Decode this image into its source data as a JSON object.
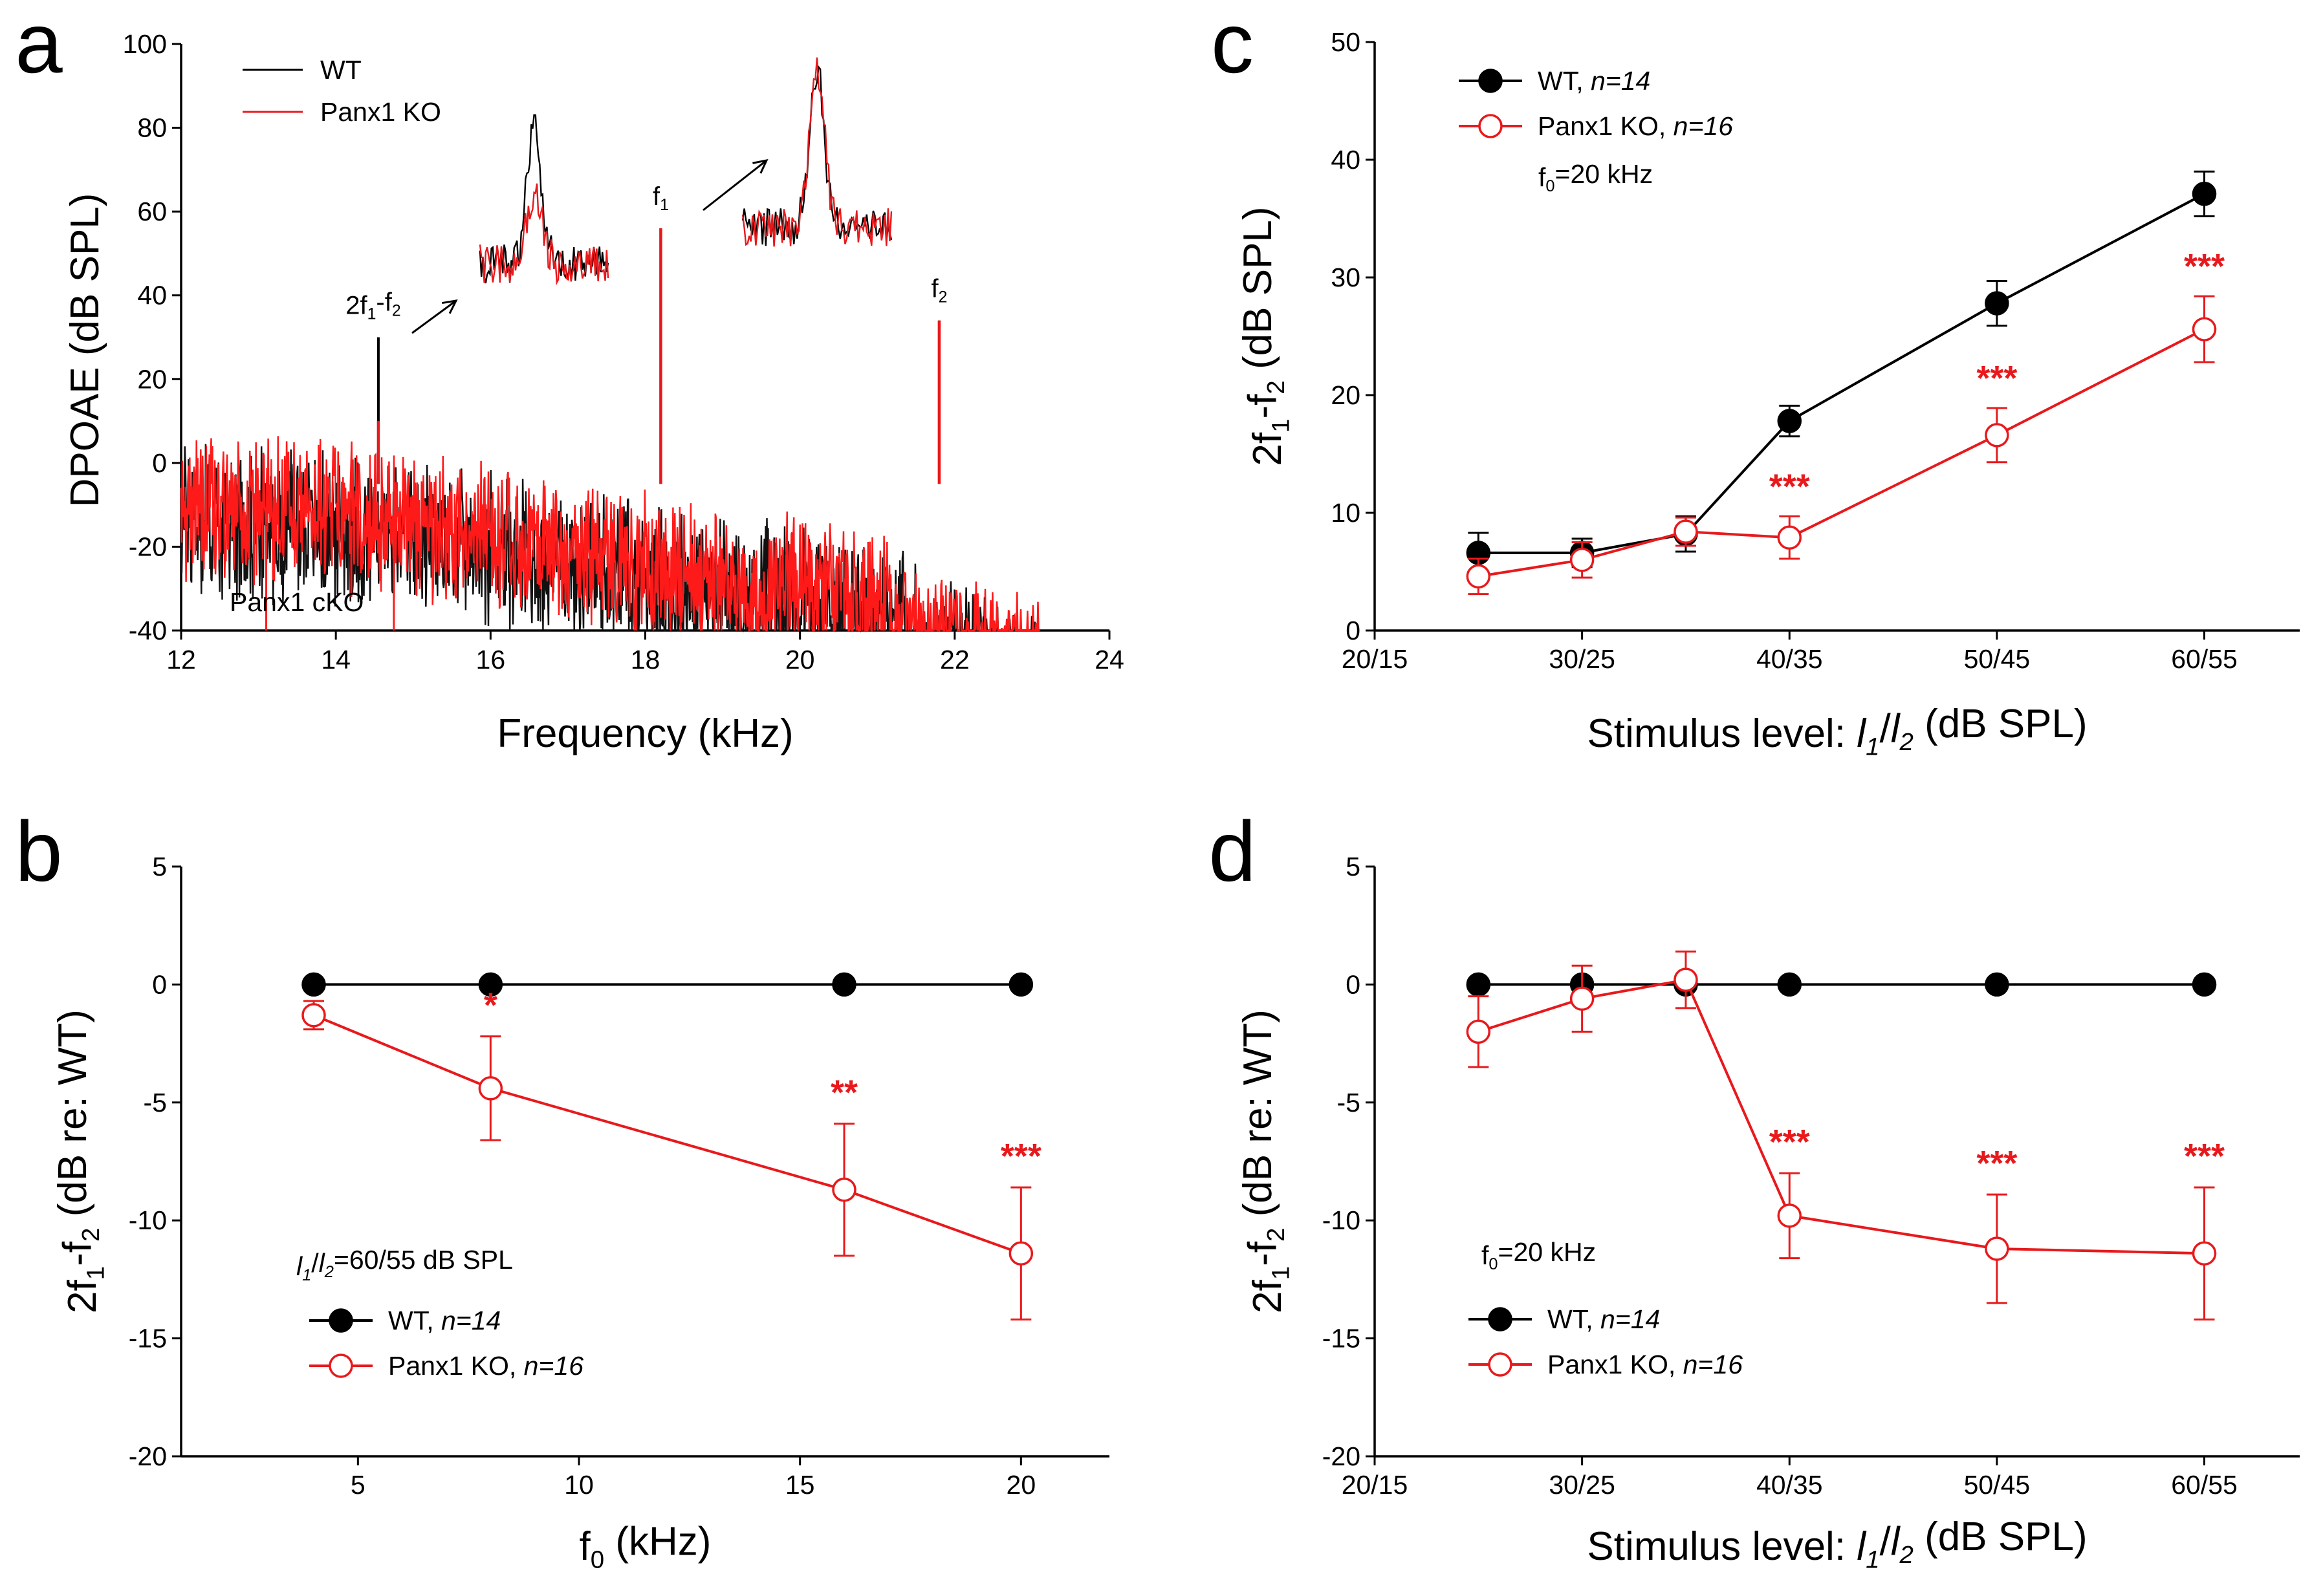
{
  "colors": {
    "wt": "#000000",
    "ko": "#e8191c",
    "noise_wt": "#111111",
    "noise_ko": "#ff1a1a"
  },
  "chart_data": [
    {
      "panel": "a",
      "type": "line",
      "xlabel": "Frequency (kHz)",
      "ylabel": "DPOAE (dB SPL)",
      "xlim": [
        12,
        24
      ],
      "ylim": [
        -40,
        100
      ],
      "xticks": [
        "12",
        "14",
        "16",
        "18",
        "20",
        "22",
        "24"
      ],
      "yticks": [
        "-40",
        "-20",
        "0",
        "20",
        "40",
        "60",
        "80",
        "100"
      ],
      "legend": [
        "WT",
        "Panx1 KO"
      ],
      "watermark": "Panx1 cKO",
      "noise_floor": {
        "x_start": 12,
        "x_end": 23.1,
        "y_start": 0,
        "y_end": -40
      },
      "peaks": [
        {
          "label_main": "2f",
          "label_sub": "1",
          "label_rest": "-f",
          "label_sub2": "2",
          "x": 14.55,
          "wt": 30,
          "ko": 10
        },
        {
          "label_main": "f",
          "label_sub": "1",
          "label_rest": "",
          "label_sub2": "",
          "x": 18.2,
          "wt": 56,
          "ko": 56
        },
        {
          "label_main": "f",
          "label_sub": "2",
          "label_rest": "",
          "label_sub2": "",
          "x": 21.8,
          "wt": 34,
          "ko": 34
        }
      ],
      "insets": [
        {
          "name": "2f1-f2 zoom",
          "wt_peak": 1.0,
          "ko_peak": 0.55
        },
        {
          "name": "f1 zoom",
          "wt_peak": 1.0,
          "ko_peak": 1.0
        }
      ]
    },
    {
      "panel": "b",
      "type": "line",
      "xlabel": "f0 (kHz)",
      "ylabel": "2f1-f2 (dB re: WT)",
      "xlim": [
        1,
        22
      ],
      "ylim": [
        -20,
        5
      ],
      "xticks": [
        5,
        10,
        15,
        20
      ],
      "yticks": [
        5,
        0,
        -5,
        -10,
        -15,
        -20
      ],
      "annotation": "l1/l2=60/55 dB SPL",
      "series": [
        {
          "name": "WT",
          "n": "n=14",
          "x": [
            4,
            8,
            16,
            20
          ],
          "values": [
            0,
            0,
            0,
            0
          ],
          "err": [
            0,
            0,
            0,
            0
          ]
        },
        {
          "name": "Panx1 KO",
          "n": "n=16",
          "x": [
            4,
            8,
            16,
            20
          ],
          "values": [
            -1.3,
            -4.4,
            -8.7,
            -11.4
          ],
          "err": [
            0.6,
            2.2,
            2.8,
            2.8
          ]
        }
      ],
      "significance": [
        {
          "x": 8,
          "label": "*"
        },
        {
          "x": 16,
          "label": "**"
        },
        {
          "x": 20,
          "label": "***"
        }
      ]
    },
    {
      "panel": "c",
      "type": "line",
      "xlabel": "Stimulus level: l1/l2 (dB SPL)",
      "ylabel": "2f1-f2 (dB SPL)",
      "ylim": [
        0,
        50
      ],
      "categories": [
        "20/15",
        "30/25",
        "40/35",
        "50/45",
        "60/55"
      ],
      "yticks": [
        0,
        10,
        20,
        30,
        40,
        50
      ],
      "annotation": "f0=20 kHz",
      "series": [
        {
          "name": "WT",
          "n": "n=14",
          "x": [
            25,
            30,
            35,
            40,
            50,
            60
          ],
          "values": [
            6.6,
            6.6,
            8.2,
            17.8,
            27.8,
            37.1
          ],
          "err": [
            1.7,
            1.2,
            1.5,
            1.3,
            1.9,
            1.9
          ]
        },
        {
          "name": "Panx1 KO",
          "n": "n=16",
          "x": [
            25,
            30,
            35,
            40,
            50,
            60
          ],
          "values": [
            4.6,
            6.0,
            8.4,
            7.9,
            16.6,
            25.6
          ],
          "err": [
            1.5,
            1.5,
            1.2,
            1.8,
            2.3,
            2.8
          ]
        }
      ],
      "significance": [
        {
          "x": 40,
          "label": "***"
        },
        {
          "x": 50,
          "label": "***"
        },
        {
          "x": 60,
          "label": "***"
        }
      ]
    },
    {
      "panel": "d",
      "type": "line",
      "xlabel": "Stimulus level: l1/l2 (dB SPL)",
      "ylabel": "2f1-f2 (dB re: WT)",
      "ylim": [
        -20,
        5
      ],
      "categories": [
        "20/15",
        "30/25",
        "40/35",
        "50/45",
        "60/55"
      ],
      "yticks": [
        5,
        0,
        -5,
        -10,
        -15,
        -20
      ],
      "annotation": "f0=20 kHz",
      "series": [
        {
          "name": "WT",
          "n": "n=14",
          "x": [
            25,
            30,
            35,
            40,
            50,
            60
          ],
          "values": [
            0,
            0,
            0,
            0,
            0,
            0
          ],
          "err": [
            0,
            0,
            0,
            0,
            0,
            0
          ]
        },
        {
          "name": "Panx1 KO",
          "n": "n=16",
          "x": [
            25,
            30,
            35,
            40,
            50,
            60
          ],
          "values": [
            -2.0,
            -0.6,
            0.2,
            -9.8,
            -11.2,
            -11.4
          ],
          "err": [
            1.5,
            1.4,
            1.2,
            1.8,
            2.3,
            2.8
          ]
        }
      ],
      "significance": [
        {
          "x": 40,
          "label": "***"
        },
        {
          "x": 50,
          "label": "***"
        },
        {
          "x": 60,
          "label": "***"
        }
      ]
    }
  ]
}
